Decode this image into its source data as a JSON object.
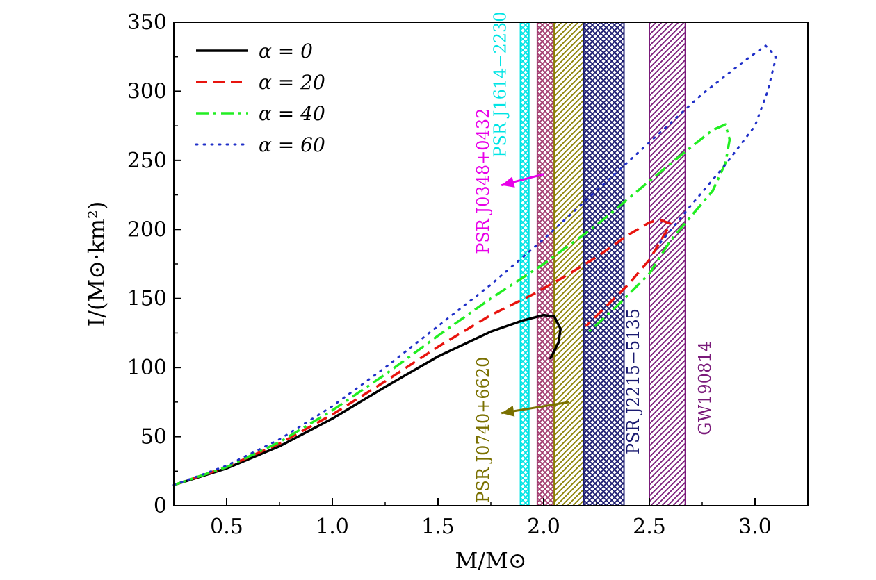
{
  "chart_data": {
    "type": "line",
    "title": "",
    "xlabel": "M/M⊙",
    "ylabel": "I/(M⊙·km²)",
    "xlim": [
      0.25,
      3.25
    ],
    "ylim": [
      0,
      350
    ],
    "xticks": [
      0.5,
      1.0,
      1.5,
      2.0,
      2.5,
      3.0
    ],
    "xtick_labels": [
      "0.5",
      "1.0",
      "1.5",
      "2.0",
      "2.5",
      "3.0"
    ],
    "yticks": [
      0,
      50,
      100,
      150,
      200,
      250,
      300,
      350
    ],
    "ytick_labels": [
      "0",
      "50",
      "100",
      "150",
      "200",
      "250",
      "300",
      "350"
    ],
    "grid": false,
    "legend_position": "top-left",
    "series": [
      {
        "name": "α = 0",
        "color": "#000000",
        "dash": "solid",
        "x": [
          0.25,
          0.5,
          0.75,
          1.0,
          1.25,
          1.5,
          1.75,
          1.9,
          2.0,
          2.05,
          2.08,
          2.07,
          2.05,
          2.03
        ],
        "y": [
          15,
          27,
          43,
          63,
          86,
          108,
          126,
          134,
          138,
          137,
          128,
          118,
          112,
          106
        ]
      },
      {
        "name": "α = 20",
        "color": "#e8140e",
        "dash": "dashed",
        "x": [
          0.25,
          0.5,
          0.75,
          1.0,
          1.25,
          1.5,
          1.75,
          1.95,
          2.1,
          2.25,
          2.4,
          2.5,
          2.55,
          2.6,
          2.57,
          2.5,
          2.4,
          2.3,
          2.2
        ],
        "y": [
          15,
          28,
          45,
          66,
          90,
          115,
          138,
          153,
          166,
          180,
          196,
          205,
          207,
          204,
          196,
          178,
          160,
          145,
          130
        ]
      },
      {
        "name": "α = 40",
        "color": "#22ee22",
        "dash": "dash-dot",
        "x": [
          0.25,
          0.5,
          0.75,
          1.0,
          1.25,
          1.5,
          1.75,
          2.0,
          2.25,
          2.5,
          2.7,
          2.8,
          2.86,
          2.88,
          2.86,
          2.8,
          2.7,
          2.6,
          2.5,
          2.35,
          2.2
        ],
        "y": [
          15,
          28,
          46,
          69,
          95,
          123,
          150,
          175,
          203,
          235,
          260,
          272,
          276,
          265,
          248,
          228,
          210,
          192,
          168,
          145,
          124
        ]
      },
      {
        "name": "α = 60",
        "color": "#1f2fc8",
        "dash": "dotted",
        "x": [
          0.25,
          0.5,
          0.75,
          1.0,
          1.25,
          1.5,
          1.75,
          2.0,
          2.25,
          2.5,
          2.75,
          2.95,
          3.05,
          3.1,
          3.06,
          3.0,
          2.85,
          2.7,
          2.55
        ],
        "y": [
          15,
          29,
          48,
          72,
          100,
          130,
          160,
          193,
          228,
          263,
          298,
          322,
          333,
          325,
          300,
          275,
          245,
          218,
          190
        ]
      }
    ],
    "bands": [
      {
        "name": "PSR J1614−2230",
        "xmin": 1.89,
        "xmax": 1.93,
        "color": "#00e4e4",
        "pattern": "cross"
      },
      {
        "name": "PSR J0348+0432",
        "xmin": 1.97,
        "xmax": 2.05,
        "color": "#a23a6e",
        "pattern": "cross"
      },
      {
        "name": "PSR J0740+6620",
        "xmin": 2.05,
        "xmax": 2.19,
        "color": "#8a8000",
        "pattern": "diagonal"
      },
      {
        "name": "PSR J2215−5135",
        "xmin": 2.19,
        "xmax": 2.38,
        "color": "#1a1a70",
        "pattern": "cross"
      },
      {
        "name": "GW190814",
        "xmin": 2.5,
        "xmax": 2.67,
        "color": "#7a1a7a",
        "pattern": "diagonal"
      }
    ],
    "annotations": [
      {
        "text": "PSR J1614−2230",
        "color": "#00e4e4",
        "x": 1.82,
        "y": 305
      },
      {
        "text": "PSR J0348+0432",
        "color": "#e800e8",
        "x": 1.74,
        "y": 235
      },
      {
        "text": "PSR J0740+6620",
        "color": "#7a7000",
        "x": 1.74,
        "y": 55
      },
      {
        "text": "PSR J2215−5135",
        "color": "#1a1a70",
        "x": 2.45,
        "y": 90
      },
      {
        "text": "GW190814",
        "color": "#7a1a7a",
        "x": 2.79,
        "y": 85
      }
    ],
    "arrows": [
      {
        "color": "#e800e8",
        "from": [
          2.0,
          240
        ],
        "to": [
          1.8,
          232
        ]
      },
      {
        "color": "#7a7000",
        "from": [
          2.12,
          75
        ],
        "to": [
          1.8,
          67
        ]
      }
    ]
  }
}
